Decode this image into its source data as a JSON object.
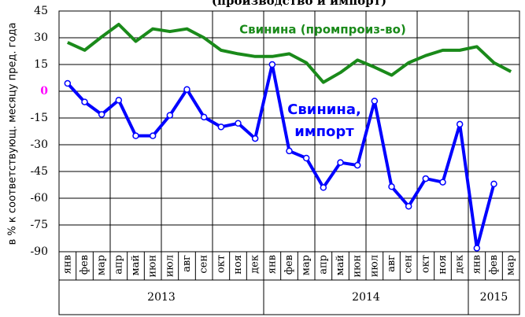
{
  "chart_data": {
    "type": "line",
    "title": "(производство и импорт)",
    "y_label": "в % к соответствующ. месяцу пред. года",
    "categories": [
      "янв",
      "фев",
      "мар",
      "апр",
      "май",
      "июн",
      "июл",
      "авг",
      "сен",
      "окт",
      "ноя",
      "дек",
      "янв",
      "фев",
      "мар",
      "апр",
      "май",
      "июн",
      "июл",
      "авг",
      "сен",
      "окт",
      "ноя",
      "дек",
      "янв",
      "фев",
      "мар"
    ],
    "years": [
      "2013",
      "2014",
      "2015"
    ],
    "series": [
      {
        "name": "Свинина (промпроиз-во)",
        "color": "#1a8a1a",
        "markers": false,
        "values": [
          27.4,
          23,
          30.5,
          37.5,
          28,
          35,
          33.5,
          35,
          30,
          23,
          21,
          19.5,
          19.5,
          21,
          16,
          5,
          10.5,
          17.5,
          13.5,
          9,
          16,
          20,
          23,
          23,
          25,
          16,
          11
        ]
      },
      {
        "name": [
          "Свинина,",
          "импорт"
        ],
        "color": "#0000ff",
        "markers": true,
        "values": [
          4.4,
          -6,
          -13,
          -5,
          -25,
          -25,
          -13.5,
          1,
          -14.5,
          -20,
          -18,
          -26.5,
          15,
          -33.5,
          -37.5,
          -54,
          -40,
          -41.5,
          -5.5,
          -53.5,
          -64.5,
          -49,
          -51,
          -18.5,
          -88,
          -52,
          null
        ]
      }
    ],
    "ylim": [
      -90,
      45
    ],
    "yticks": [
      45,
      30,
      15,
      0,
      -15,
      -30,
      -45,
      -60,
      -75,
      -90
    ],
    "highlight_tick_color": "#ff00ff",
    "grid": true
  }
}
